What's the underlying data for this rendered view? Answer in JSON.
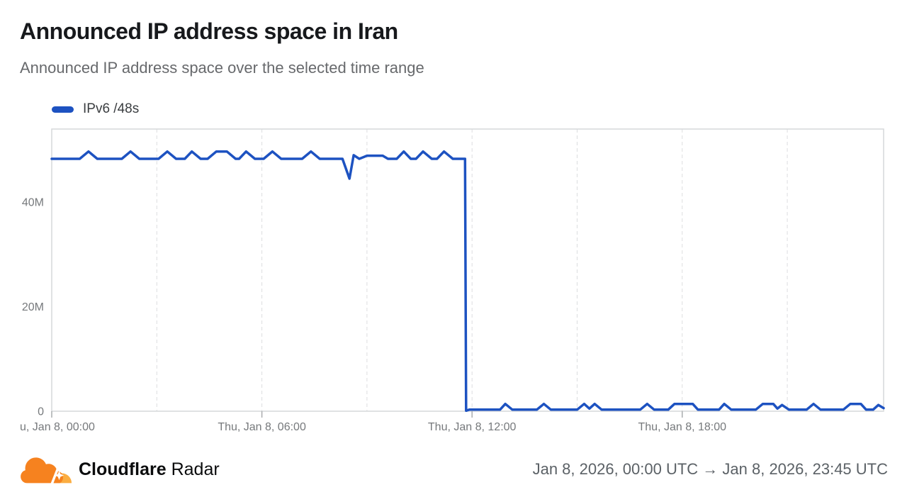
{
  "header": {
    "title": "Announced IP address space in Iran",
    "subtitle": "Announced IP address space over the selected time range"
  },
  "legend": {
    "label": "IPv6 /48s",
    "color": "#1d52c1"
  },
  "footer": {
    "brand_bold": "Cloudflare",
    "brand_regular": "Radar",
    "date_range": "Jan 8, 2026, 00:00 UTC → Jan 8, 2026, 23:45 UTC",
    "logo_primary_color": "#F6821F",
    "logo_secondary_color": "#FBAD41"
  },
  "chart_data": {
    "type": "line",
    "title": "Announced IP address space in Iran",
    "unit": "millions of IPv6 /48s",
    "grid": "vertical-dashed",
    "legend_position": "top-left",
    "colors": {
      "series": "#1d52c1",
      "gridline": "#dcdee0",
      "border": "#d6d8da",
      "tick": "#a9acae",
      "axis_text": "#76797c"
    },
    "x_axis": {
      "domain_hours": [
        0,
        23.75
      ],
      "gridline_hours": [
        3,
        6,
        9,
        12,
        15,
        18,
        21
      ],
      "tick_mark_hours": [
        0,
        6,
        12,
        18
      ],
      "ticks": [
        {
          "hour": 0,
          "label": "u, Jan 8, 00:00",
          "anchor": "start"
        },
        {
          "hour": 6,
          "label": "Thu, Jan 8, 06:00",
          "anchor": "middle"
        },
        {
          "hour": 12,
          "label": "Thu, Jan 8, 12:00",
          "anchor": "middle"
        },
        {
          "hour": 18,
          "label": "Thu, Jan 8, 18:00",
          "anchor": "middle"
        }
      ]
    },
    "y_axis": {
      "max": 54,
      "min": 0,
      "ticks": [
        {
          "value": 40,
          "label": "40M"
        },
        {
          "value": 20,
          "label": "20M"
        },
        {
          "value": 0,
          "label": "0"
        }
      ]
    },
    "series": [
      {
        "name": "IPv6 /48s",
        "color": "#1d52c1",
        "points_hour_vs_millions": [
          [
            0.0,
            48.3
          ],
          [
            0.8,
            48.3
          ],
          [
            1.05,
            49.7
          ],
          [
            1.3,
            48.3
          ],
          [
            2.0,
            48.3
          ],
          [
            2.25,
            49.7
          ],
          [
            2.5,
            48.3
          ],
          [
            3.05,
            48.3
          ],
          [
            3.3,
            49.7
          ],
          [
            3.55,
            48.3
          ],
          [
            3.8,
            48.3
          ],
          [
            4.0,
            49.7
          ],
          [
            4.25,
            48.3
          ],
          [
            4.45,
            48.3
          ],
          [
            4.7,
            49.7
          ],
          [
            5.0,
            49.7
          ],
          [
            5.25,
            48.3
          ],
          [
            5.35,
            48.3
          ],
          [
            5.55,
            49.7
          ],
          [
            5.8,
            48.3
          ],
          [
            6.05,
            48.3
          ],
          [
            6.3,
            49.7
          ],
          [
            6.55,
            48.3
          ],
          [
            7.15,
            48.3
          ],
          [
            7.4,
            49.7
          ],
          [
            7.65,
            48.3
          ],
          [
            8.3,
            48.3
          ],
          [
            8.5,
            44.5
          ],
          [
            8.62,
            49.0
          ],
          [
            8.78,
            48.3
          ],
          [
            9.0,
            48.9
          ],
          [
            9.45,
            48.9
          ],
          [
            9.6,
            48.3
          ],
          [
            9.85,
            48.3
          ],
          [
            10.05,
            49.7
          ],
          [
            10.25,
            48.3
          ],
          [
            10.4,
            48.3
          ],
          [
            10.6,
            49.7
          ],
          [
            10.85,
            48.3
          ],
          [
            11.0,
            48.3
          ],
          [
            11.2,
            49.7
          ],
          [
            11.45,
            48.3
          ],
          [
            11.8,
            48.3
          ],
          [
            11.83,
            0.1
          ],
          [
            11.92,
            0.3
          ],
          [
            12.8,
            0.3
          ],
          [
            12.95,
            1.4
          ],
          [
            13.15,
            0.3
          ],
          [
            13.85,
            0.3
          ],
          [
            14.05,
            1.4
          ],
          [
            14.25,
            0.3
          ],
          [
            15.0,
            0.3
          ],
          [
            15.2,
            1.4
          ],
          [
            15.35,
            0.5
          ],
          [
            15.5,
            1.4
          ],
          [
            15.7,
            0.3
          ],
          [
            16.8,
            0.3
          ],
          [
            17.0,
            1.4
          ],
          [
            17.2,
            0.3
          ],
          [
            17.6,
            0.3
          ],
          [
            17.78,
            1.4
          ],
          [
            18.3,
            1.4
          ],
          [
            18.45,
            0.3
          ],
          [
            19.05,
            0.3
          ],
          [
            19.2,
            1.4
          ],
          [
            19.4,
            0.3
          ],
          [
            20.1,
            0.3
          ],
          [
            20.3,
            1.4
          ],
          [
            20.6,
            1.4
          ],
          [
            20.72,
            0.5
          ],
          [
            20.85,
            1.2
          ],
          [
            21.05,
            0.3
          ],
          [
            21.55,
            0.3
          ],
          [
            21.75,
            1.4
          ],
          [
            21.95,
            0.3
          ],
          [
            22.6,
            0.3
          ],
          [
            22.8,
            1.4
          ],
          [
            23.1,
            1.4
          ],
          [
            23.25,
            0.3
          ],
          [
            23.45,
            0.3
          ],
          [
            23.6,
            1.2
          ],
          [
            23.75,
            0.6
          ]
        ]
      }
    ]
  }
}
